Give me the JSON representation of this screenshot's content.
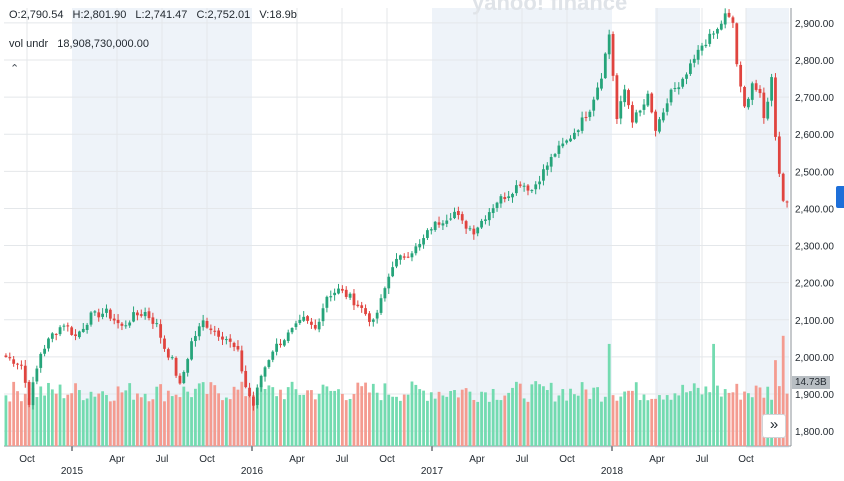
{
  "header": {
    "open_label": "O:2,790.54",
    "high_label": "H:2,801.90",
    "low_label": "L:2,741.47",
    "close_label": "C:2,752.01",
    "volume_label": "V:18.9b"
  },
  "volume_row": {
    "label": "vol undr",
    "value": "18,908,730,000.00"
  },
  "collapse_icon": "chevron-up-icon",
  "collapse_glyph": "⌃",
  "scroll_button_glyph": "»",
  "volume_badge": "14.73B",
  "colors": {
    "up": "#26a47a",
    "down": "#e0443f",
    "vol_up": "#73dbb0",
    "vol_down": "#f49b90",
    "shade": "#eef3f9",
    "grid": "#e4e7ea",
    "accent": "#1e6fd9"
  },
  "chart_data": {
    "type": "candlestick",
    "interval": "weekly",
    "title": "",
    "ylim": [
      1760,
      2940
    ],
    "yticks": [
      1800,
      1900,
      2000,
      2100,
      2200,
      2300,
      2400,
      2500,
      2600,
      2700,
      2800,
      2900
    ],
    "ytick_labels": [
      "1,800.00",
      "1,900.00",
      "2,000.00",
      "2,100.00",
      "2,200.00",
      "2,300.00",
      "2,400.00",
      "2,500.00",
      "2,600.00",
      "2,700.00",
      "2,800.00",
      "2,900.00"
    ],
    "xtick_labels": [
      "Oct",
      "Apr",
      "Jul",
      "Oct",
      "Apr",
      "Jul",
      "Oct",
      "Apr",
      "Jul",
      "Oct",
      "Apr",
      "Jul",
      "Oct"
    ],
    "year_labels": [
      "2015",
      "2016",
      "2017",
      "2018"
    ],
    "shaded_periods": [
      "2015 H1",
      "2016 H1",
      "2017 H1",
      "2018 H1",
      "2018 Q4"
    ],
    "grid": true,
    "last_close": 2416.6,
    "last_volume": "14.73B",
    "anchors": [
      [
        0,
        2000
      ],
      [
        4,
        1980
      ],
      [
        6,
        1880
      ],
      [
        9,
        2010
      ],
      [
        12,
        2060
      ],
      [
        15,
        2090
      ],
      [
        18,
        2055
      ],
      [
        22,
        2110
      ],
      [
        26,
        2120
      ],
      [
        30,
        2080
      ],
      [
        33,
        2110
      ],
      [
        36,
        2120
      ],
      [
        39,
        2085
      ],
      [
        41,
        2025
      ],
      [
        43,
        1990
      ],
      [
        45,
        1920
      ],
      [
        48,
        2040
      ],
      [
        51,
        2095
      ],
      [
        54,
        2070
      ],
      [
        57,
        2050
      ],
      [
        60,
        2010
      ],
      [
        62,
        1920
      ],
      [
        64,
        1870
      ],
      [
        66,
        1950
      ],
      [
        69,
        2020
      ],
      [
        73,
        2060
      ],
      [
        77,
        2100
      ],
      [
        80,
        2075
      ],
      [
        83,
        2165
      ],
      [
        86,
        2180
      ],
      [
        89,
        2160
      ],
      [
        92,
        2130
      ],
      [
        95,
        2090
      ],
      [
        97,
        2150
      ],
      [
        100,
        2250
      ],
      [
        104,
        2280
      ],
      [
        107,
        2300
      ],
      [
        110,
        2350
      ],
      [
        113,
        2370
      ],
      [
        116,
        2390
      ],
      [
        118,
        2360
      ],
      [
        121,
        2340
      ],
      [
        124,
        2380
      ],
      [
        127,
        2420
      ],
      [
        130,
        2440
      ],
      [
        133,
        2470
      ],
      [
        136,
        2450
      ],
      [
        139,
        2500
      ],
      [
        142,
        2550
      ],
      [
        145,
        2580
      ],
      [
        148,
        2620
      ],
      [
        151,
        2670
      ],
      [
        154,
        2760
      ],
      [
        156,
        2870
      ],
      [
        157,
        2760
      ],
      [
        158,
        2640
      ],
      [
        160,
        2720
      ],
      [
        162,
        2640
      ],
      [
        164,
        2660
      ],
      [
        166,
        2700
      ],
      [
        168,
        2610
      ],
      [
        170,
        2650
      ],
      [
        172,
        2720
      ],
      [
        174,
        2720
      ],
      [
        176,
        2760
      ],
      [
        178,
        2800
      ],
      [
        180,
        2840
      ],
      [
        182,
        2860
      ],
      [
        184,
        2880
      ],
      [
        186,
        2920
      ],
      [
        188,
        2900
      ],
      [
        189,
        2790
      ],
      [
        190,
        2720
      ],
      [
        191,
        2670
      ],
      [
        193,
        2740
      ],
      [
        195,
        2700
      ],
      [
        196,
        2640
      ],
      [
        198,
        2750
      ],
      [
        199,
        2600
      ],
      [
        200,
        2500
      ],
      [
        201,
        2420
      ],
      [
        202,
        2416.6
      ]
    ],
    "volume": {
      "ylim": [
        0,
        10
      ],
      "note": "volume shown as relative bar heights"
    }
  }
}
